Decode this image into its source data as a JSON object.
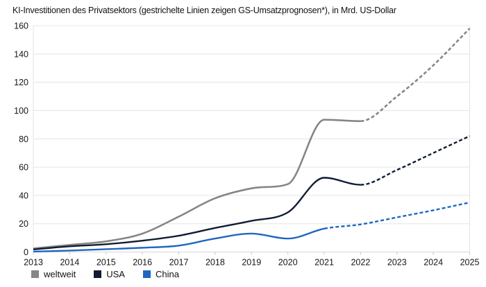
{
  "title": "KI-Investitionen des Privatsektors (gestrichelte Linien zeigen GS-Umsatzprognosen*), in Mrd. US-Dollar",
  "chart_data": {
    "type": "line",
    "x": [
      2013,
      2014,
      2015,
      2016,
      2017,
      2018,
      2019,
      2020,
      2021,
      2022,
      2023,
      2024,
      2025
    ],
    "series": [
      {
        "name": "weltweit",
        "color": "#868686",
        "line_width": 2.6,
        "dashed_from": 2022,
        "values": [
          2.5,
          5,
          7.5,
          13,
          25,
          38,
          45,
          48,
          93.5,
          92.5,
          110,
          132,
          158
        ]
      },
      {
        "name": "USA",
        "color": "#101c33",
        "line_width": 2.4,
        "dashed_from": 2022,
        "values": [
          1.8,
          4,
          5.5,
          8,
          11.5,
          17,
          22,
          28,
          52.5,
          47.5,
          58,
          70,
          82
        ]
      },
      {
        "name": "China",
        "color": "#2066c1",
        "line_width": 2.4,
        "dashed_from": 2021,
        "values": [
          0.3,
          1,
          2,
          3,
          4.5,
          9.5,
          13,
          9.5,
          16.5,
          19.5,
          24.5,
          29.5,
          35
        ]
      }
    ],
    "ylim": [
      0,
      160
    ],
    "y_ticks": [
      0,
      20,
      40,
      60,
      80,
      100,
      120,
      140,
      160
    ],
    "xlabel": "",
    "ylabel": "",
    "grid": "horizontal",
    "legend_position": "bottom-left",
    "note_marker": "*"
  },
  "colors": {
    "background": "#ffffff",
    "grid": "#e4e4e4",
    "axis": "#d6d6d6",
    "tick": "#c9c9c9",
    "text": "#161616"
  }
}
